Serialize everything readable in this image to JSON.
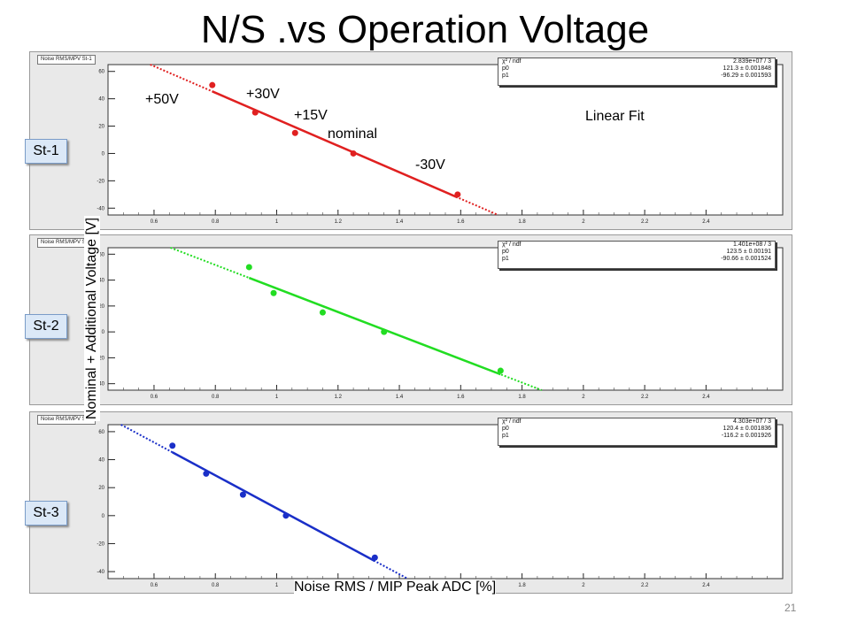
{
  "slide": {
    "title": "N/S .vs Operation Voltage",
    "page_number": "21",
    "y_axis_title": "Nominal + Additional Voltage [V]",
    "x_axis_title": "Noise RMS / MIP Peak ADC [%]",
    "fit_label": "Linear Fit",
    "point_labels": [
      "+50V",
      "+30V",
      "+15V",
      "nominal",
      "-30V"
    ]
  },
  "chart_data": [
    {
      "type": "scatter",
      "name_tag": "St-1",
      "histogram_title": "Noise RMS/MPV St-1",
      "color": "#e02020",
      "x": [
        0.79,
        0.93,
        1.06,
        1.25,
        1.59
      ],
      "y": [
        50,
        30,
        15,
        0,
        -30
      ],
      "fit": {
        "p0": "121.3 ± 0.001848",
        "p1": "-96.29 ± 0.001593",
        "chi2_ndf": "2.839e+07 / 3"
      },
      "xlim": [
        0.45,
        2.65
      ],
      "ylim": [
        -45,
        65
      ],
      "x_ticks": [
        "0.6",
        "0.8",
        "1",
        "1.2",
        "1.4",
        "1.6",
        "1.8",
        "2",
        "2.2",
        "2.4"
      ],
      "y_ticks": [
        "60",
        "40",
        "20",
        "0",
        "-20",
        "-40"
      ]
    },
    {
      "type": "scatter",
      "name_tag": "St-2",
      "histogram_title": "Noise RMS/MPV St-2",
      "color": "#22dd22",
      "x": [
        0.91,
        0.99,
        1.15,
        1.35,
        1.73
      ],
      "y": [
        50,
        30,
        15,
        0,
        -30
      ],
      "fit": {
        "p0": "123.5 ± 0.00191",
        "p1": "-90.66 ± 0.001524",
        "chi2_ndf": "1.401e+08 / 3"
      },
      "xlim": [
        0.45,
        2.65
      ],
      "ylim": [
        -45,
        65
      ],
      "x_ticks": [
        "0.6",
        "0.8",
        "1",
        "1.2",
        "1.4",
        "1.6",
        "1.8",
        "2",
        "2.2",
        "2.4"
      ],
      "y_ticks": [
        "60",
        "40",
        "20",
        "0",
        "-20",
        "-40"
      ]
    },
    {
      "type": "scatter",
      "name_tag": "St-3",
      "histogram_title": "Noise RMS/MPV St-3",
      "color": "#1a2fc8",
      "x": [
        0.66,
        0.77,
        0.89,
        1.03,
        1.32
      ],
      "y": [
        50,
        30,
        15,
        0,
        -30
      ],
      "fit": {
        "p0": "120.4 ± 0.001836",
        "p1": "-116.2 ± 0.001926",
        "chi2_ndf": "4.303e+07 / 3"
      },
      "xlim": [
        0.45,
        2.65
      ],
      "ylim": [
        -45,
        65
      ],
      "x_ticks": [
        "0.6",
        "0.8",
        "1",
        "1.2",
        "1.4",
        "1.6",
        "1.8",
        "2",
        "2.2",
        "2.4"
      ],
      "y_ticks": [
        "60",
        "40",
        "20",
        "0",
        "-20",
        "-40"
      ]
    }
  ],
  "stats_labels": {
    "chi2": "χ² / ndf",
    "p0": "p0",
    "p1": "p1"
  }
}
